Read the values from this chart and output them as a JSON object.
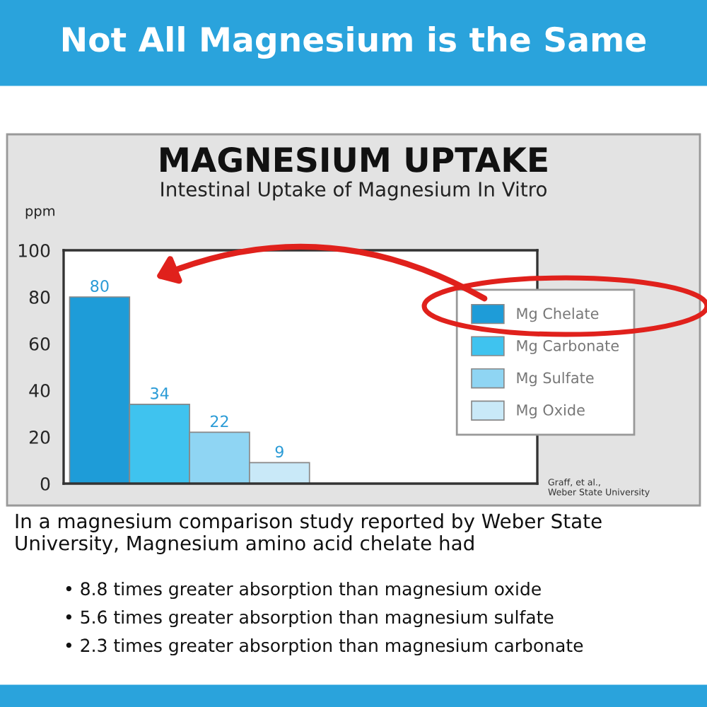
{
  "chart_data": {
    "type": "bar",
    "title": "MAGNESIUM UPTAKE",
    "subtitle": "Intestinal Uptake of Magnesium In Vitro",
    "ylabel": "ppm",
    "categories": [
      null
    ],
    "series": [
      {
        "name": "Mg Chelate",
        "color": "#1e9cd8",
        "values": [
          80
        ]
      },
      {
        "name": "Mg Carbonate",
        "color": "#3fc3ef",
        "values": [
          34
        ]
      },
      {
        "name": "Mg Sulfate",
        "color": "#8fd5f3",
        "values": [
          22
        ]
      },
      {
        "name": "Mg Oxide",
        "color": "#c9e9f8",
        "values": [
          9
        ]
      }
    ],
    "ylim": [
      0,
      100
    ],
    "yticks": [
      0,
      20,
      40,
      60,
      80,
      100
    ],
    "data_labels": true,
    "legend": "right",
    "tick_labels": "y",
    "grid": false,
    "annotations": [
      "Not All Magnesium is the Same",
      "Graff, et al.,\nWeber State University",
      "In a magnesium comparison study reported by Weber State\nUniversity, Magnesium amino acid chelate had",
      "• 8.8 times greater absorption than magnesium oxide",
      "• 5.6 times greater absorption than magnesium sulfate",
      "• 2.3 times greater absorption than magnesium carbonate"
    ]
  }
}
